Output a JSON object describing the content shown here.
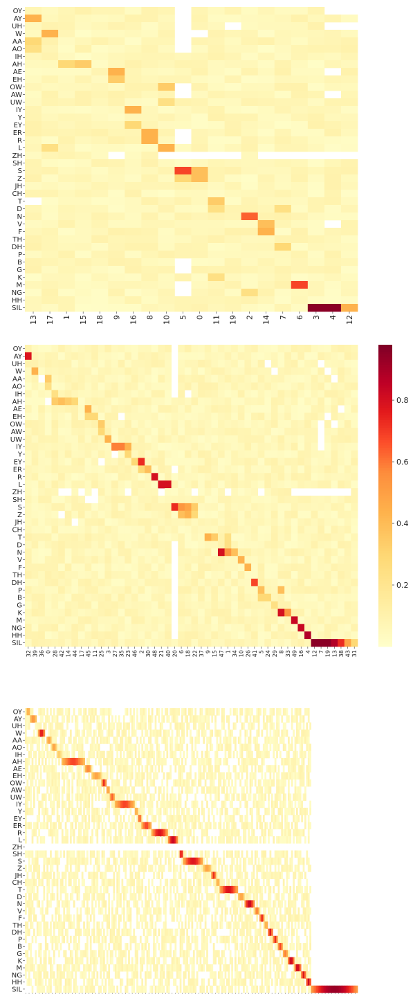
{
  "chart_data": [
    {
      "type": "heatmap",
      "title": "",
      "xlabel": "",
      "ylabel": "",
      "y_categories": [
        "OY",
        "AY",
        "UH",
        "W",
        "AA",
        "AO",
        "IH",
        "AH",
        "AE",
        "EH",
        "OW",
        "AW",
        "UW",
        "IY",
        "Y",
        "EY",
        "ER",
        "R",
        "L",
        "ZH",
        "SH",
        "S",
        "Z",
        "JH",
        "CH",
        "T",
        "D",
        "N",
        "V",
        "F",
        "TH",
        "DH",
        "P",
        "B",
        "G",
        "K",
        "M",
        "NG",
        "HH",
        "SIL"
      ],
      "x_categories": [
        "13",
        "17",
        "1",
        "15",
        "18",
        "9",
        "16",
        "8",
        "10",
        "5",
        "0",
        "11",
        "19",
        "2",
        "14",
        "7",
        "6",
        "3",
        "4",
        "12"
      ],
      "highlights": [
        [
          1,
          0,
          0.45
        ],
        [
          3,
          1,
          0.45
        ],
        [
          4,
          0,
          0.3
        ],
        [
          5,
          0,
          0.25
        ],
        [
          7,
          2,
          0.3
        ],
        [
          7,
          3,
          0.35
        ],
        [
          8,
          5,
          0.45
        ],
        [
          9,
          5,
          0.35
        ],
        [
          10,
          8,
          0.35
        ],
        [
          12,
          8,
          0.25
        ],
        [
          13,
          6,
          0.45
        ],
        [
          15,
          6,
          0.3
        ],
        [
          16,
          7,
          0.45
        ],
        [
          17,
          7,
          0.45
        ],
        [
          18,
          8,
          0.45
        ],
        [
          18,
          1,
          0.25
        ],
        [
          21,
          9,
          0.7
        ],
        [
          21,
          10,
          0.4
        ],
        [
          22,
          9,
          0.3
        ],
        [
          22,
          10,
          0.4
        ],
        [
          25,
          11,
          0.35
        ],
        [
          26,
          11,
          0.25
        ],
        [
          26,
          15,
          0.25
        ],
        [
          27,
          13,
          0.65
        ],
        [
          28,
          14,
          0.4
        ],
        [
          29,
          14,
          0.45
        ],
        [
          31,
          15,
          0.3
        ],
        [
          35,
          11,
          0.25
        ],
        [
          36,
          16,
          0.7
        ],
        [
          37,
          13,
          0.25
        ],
        [
          39,
          17,
          0.98
        ],
        [
          39,
          18,
          0.98
        ],
        [
          39,
          19,
          0.45
        ]
      ],
      "blanks": [
        [
          0,
          9
        ],
        [
          0,
          18
        ],
        [
          0,
          19
        ],
        [
          1,
          9
        ],
        [
          2,
          9
        ],
        [
          2,
          12
        ],
        [
          2,
          18
        ],
        [
          2,
          19
        ],
        [
          3,
          9
        ],
        [
          3,
          10
        ],
        [
          4,
          9
        ],
        [
          5,
          9
        ],
        [
          8,
          18
        ],
        [
          10,
          9
        ],
        [
          11,
          9
        ],
        [
          11,
          18
        ],
        [
          16,
          9
        ],
        [
          17,
          9
        ],
        [
          19,
          9
        ],
        [
          19,
          10
        ],
        [
          19,
          11
        ],
        [
          19,
          12
        ],
        [
          19,
          14
        ],
        [
          19,
          15
        ],
        [
          19,
          16
        ],
        [
          19,
          17
        ],
        [
          19,
          18
        ],
        [
          19,
          19
        ],
        [
          19,
          5
        ],
        [
          19,
          8
        ],
        [
          36,
          9
        ],
        [
          37,
          9
        ],
        [
          34,
          9
        ],
        [
          33,
          9
        ],
        [
          28,
          18
        ],
        [
          25,
          0
        ]
      ]
    },
    {
      "type": "heatmap",
      "title": "",
      "xlabel": "",
      "ylabel": "",
      "y_categories": [
        "OY",
        "AY",
        "UH",
        "W",
        "AA",
        "AO",
        "IH",
        "AH",
        "AE",
        "EH",
        "OW",
        "AW",
        "UW",
        "IY",
        "Y",
        "EY",
        "ER",
        "R",
        "L",
        "ZH",
        "SH",
        "S",
        "Z",
        "JH",
        "CH",
        "T",
        "D",
        "N",
        "V",
        "F",
        "TH",
        "DH",
        "P",
        "B",
        "G",
        "K",
        "M",
        "NG",
        "HH",
        "SIL"
      ],
      "x_categories": [
        "32",
        "39",
        "36",
        "0",
        "28",
        "42",
        "14",
        "44",
        "17",
        "45",
        "11",
        "25",
        "3",
        "27",
        "35",
        "23",
        "46",
        "2",
        "30",
        "48",
        "21",
        "40",
        "20",
        "6",
        "18",
        "22",
        "37",
        "9",
        "15",
        "47",
        "1",
        "34",
        "10",
        "26",
        "41",
        "5",
        "24",
        "29",
        "8",
        "33",
        "49",
        "16",
        "4",
        "12",
        "7",
        "19",
        "13",
        "38",
        "43",
        "31"
      ],
      "colorbar": {
        "ticks": [
          "0.2",
          "0.4",
          "0.6",
          "0.8"
        ],
        "min": 0.0,
        "max": 0.98
      },
      "highlights": [
        [
          1,
          0,
          0.8
        ],
        [
          3,
          1,
          0.45
        ],
        [
          4,
          3,
          0.35
        ],
        [
          5,
          3,
          0.25
        ],
        [
          6,
          4,
          0.25
        ],
        [
          7,
          4,
          0.35
        ],
        [
          7,
          5,
          0.4
        ],
        [
          7,
          6,
          0.35
        ],
        [
          7,
          7,
          0.3
        ],
        [
          8,
          9,
          0.45
        ],
        [
          9,
          9,
          0.3
        ],
        [
          9,
          10,
          0.3
        ],
        [
          10,
          11,
          0.35
        ],
        [
          11,
          11,
          0.3
        ],
        [
          12,
          12,
          0.45
        ],
        [
          13,
          13,
          0.6
        ],
        [
          13,
          14,
          0.6
        ],
        [
          13,
          15,
          0.45
        ],
        [
          14,
          15,
          0.3
        ],
        [
          15,
          17,
          0.75
        ],
        [
          15,
          16,
          0.3
        ],
        [
          16,
          18,
          0.4
        ],
        [
          16,
          17,
          0.3
        ],
        [
          17,
          19,
          0.82
        ],
        [
          18,
          20,
          0.82
        ],
        [
          18,
          21,
          0.82
        ],
        [
          21,
          22,
          0.75
        ],
        [
          21,
          23,
          0.55
        ],
        [
          21,
          24,
          0.5
        ],
        [
          21,
          25,
          0.35
        ],
        [
          22,
          23,
          0.4
        ],
        [
          22,
          24,
          0.45
        ],
        [
          22,
          25,
          0.3
        ],
        [
          25,
          27,
          0.45
        ],
        [
          25,
          28,
          0.35
        ],
        [
          25,
          30,
          0.25
        ],
        [
          26,
          30,
          0.25
        ],
        [
          27,
          29,
          0.82
        ],
        [
          27,
          30,
          0.55
        ],
        [
          27,
          31,
          0.4
        ],
        [
          28,
          32,
          0.45
        ],
        [
          29,
          33,
          0.45
        ],
        [
          31,
          34,
          0.7
        ],
        [
          32,
          35,
          0.4
        ],
        [
          33,
          35,
          0.3
        ],
        [
          33,
          36,
          0.3
        ],
        [
          34,
          37,
          0.25
        ],
        [
          32,
          38,
          0.4
        ],
        [
          35,
          38,
          0.82
        ],
        [
          35,
          39,
          0.55
        ],
        [
          36,
          40,
          0.85
        ],
        [
          37,
          41,
          0.85
        ],
        [
          38,
          42,
          0.9
        ],
        [
          39,
          43,
          0.98
        ],
        [
          39,
          44,
          0.98
        ],
        [
          39,
          45,
          0.98
        ],
        [
          39,
          46,
          0.9
        ],
        [
          39,
          47,
          0.75
        ],
        [
          39,
          48,
          0.5
        ],
        [
          39,
          49,
          0.3
        ]
      ],
      "blanks": [
        [
          19,
          5
        ],
        [
          19,
          6
        ],
        [
          19,
          8
        ],
        [
          19,
          10
        ],
        [
          19,
          15
        ],
        [
          19,
          20
        ],
        [
          19,
          25
        ],
        [
          19,
          30
        ],
        [
          19,
          35
        ],
        [
          19,
          40
        ],
        [
          19,
          41
        ],
        [
          19,
          42
        ],
        [
          19,
          43
        ],
        [
          19,
          44
        ],
        [
          19,
          45
        ],
        [
          19,
          46
        ],
        [
          19,
          47
        ],
        [
          19,
          48
        ],
        [
          20,
          9
        ],
        [
          20,
          10
        ],
        [
          22,
          5
        ],
        [
          23,
          7
        ],
        [
          0,
          22
        ],
        [
          1,
          22
        ],
        [
          2,
          22
        ],
        [
          3,
          22
        ],
        [
          4,
          22
        ],
        [
          5,
          22
        ],
        [
          6,
          22
        ],
        [
          2,
          36
        ],
        [
          3,
          37
        ],
        [
          6,
          24
        ],
        [
          10,
          44
        ],
        [
          11,
          44
        ],
        [
          12,
          44
        ],
        [
          13,
          44
        ],
        [
          2,
          44
        ],
        [
          3,
          45
        ],
        [
          4,
          46
        ],
        [
          8,
          47
        ],
        [
          9,
          45
        ],
        [
          10,
          46
        ],
        [
          4,
          2
        ],
        [
          7,
          3
        ],
        [
          9,
          14
        ],
        [
          14,
          13
        ],
        [
          15,
          11
        ],
        [
          16,
          22
        ],
        [
          26,
          22
        ],
        [
          27,
          22
        ],
        [
          28,
          22
        ],
        [
          29,
          22
        ],
        [
          30,
          22
        ],
        [
          31,
          22
        ],
        [
          32,
          22
        ],
        [
          33,
          22
        ],
        [
          34,
          22
        ],
        [
          35,
          22
        ],
        [
          36,
          22
        ],
        [
          37,
          22
        ],
        [
          38,
          22
        ]
      ]
    },
    {
      "type": "heatmap",
      "title": "",
      "xlabel": "",
      "ylabel": "",
      "y_categories": [
        "OY",
        "AY",
        "UH",
        "W",
        "AA",
        "AO",
        "IH",
        "AH",
        "AE",
        "EH",
        "OW",
        "AW",
        "UW",
        "IY",
        "Y",
        "EY",
        "ER",
        "R",
        "L",
        "ZH",
        "SH",
        "S",
        "Z",
        "JH",
        "CH",
        "T",
        "D",
        "N",
        "V",
        "F",
        "TH",
        "DH",
        "P",
        "B",
        "G",
        "K",
        "M",
        "NG",
        "HH",
        "SIL"
      ],
      "x_tick_note": "tick labels too small to read",
      "n_columns": 200,
      "diagonal_runs": [
        [
          0,
          1,
          2,
          0.5
        ],
        [
          1,
          3,
          4,
          0.55
        ],
        [
          3,
          8,
          4,
          0.8
        ],
        [
          4,
          13,
          3,
          0.5
        ],
        [
          5,
          16,
          3,
          0.5
        ],
        [
          6,
          19,
          3,
          0.35
        ],
        [
          7,
          22,
          14,
          0.7
        ],
        [
          8,
          36,
          4,
          0.6
        ],
        [
          9,
          40,
          6,
          0.5
        ],
        [
          10,
          46,
          3,
          0.75
        ],
        [
          11,
          49,
          2,
          0.55
        ],
        [
          12,
          51,
          3,
          0.65
        ],
        [
          13,
          54,
          12,
          0.7
        ],
        [
          14,
          66,
          2,
          0.5
        ],
        [
          15,
          68,
          2,
          0.7
        ],
        [
          16,
          70,
          6,
          0.7
        ],
        [
          17,
          76,
          10,
          0.8
        ],
        [
          18,
          86,
          6,
          0.85
        ],
        [
          20,
          93,
          2,
          0.85
        ],
        [
          21,
          95,
          12,
          0.8
        ],
        [
          22,
          107,
          5,
          0.5
        ],
        [
          23,
          112,
          3,
          0.75
        ],
        [
          24,
          115,
          2,
          0.5
        ],
        [
          25,
          117,
          11,
          0.8
        ],
        [
          26,
          128,
          4,
          0.5
        ],
        [
          27,
          132,
          6,
          0.85
        ],
        [
          28,
          138,
          3,
          0.6
        ],
        [
          29,
          141,
          3,
          0.75
        ],
        [
          30,
          144,
          2,
          0.5
        ],
        [
          31,
          146,
          3,
          0.8
        ],
        [
          32,
          149,
          3,
          0.75
        ],
        [
          33,
          152,
          3,
          0.7
        ],
        [
          34,
          155,
          3,
          0.6
        ],
        [
          35,
          158,
          4,
          0.85
        ],
        [
          36,
          162,
          4,
          0.85
        ],
        [
          37,
          166,
          3,
          0.8
        ],
        [
          38,
          169,
          3,
          0.85
        ],
        [
          39,
          172,
          28,
          0.95
        ]
      ]
    }
  ]
}
